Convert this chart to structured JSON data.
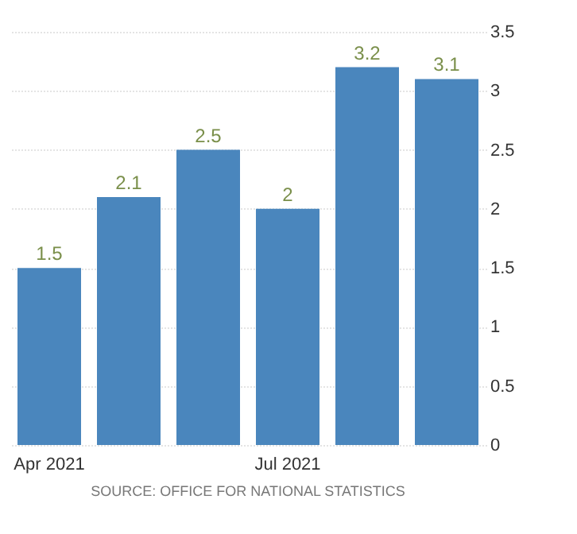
{
  "chart_data": {
    "type": "bar",
    "categories": [
      "Apr 2021",
      null,
      null,
      "Jul 2021",
      null,
      null
    ],
    "values": [
      1.5,
      2.1,
      2.5,
      2,
      3.2,
      3.1
    ],
    "color": "#4a86bd",
    "ylim": [
      0,
      3.5
    ],
    "yticks": [
      0,
      0.5,
      1,
      1.5,
      2,
      2.5,
      3,
      3.5
    ],
    "grid": "y",
    "data_labels": true,
    "annotations": [
      "SOURCE: OFFICE FOR NATIONAL STATISTICS"
    ]
  }
}
